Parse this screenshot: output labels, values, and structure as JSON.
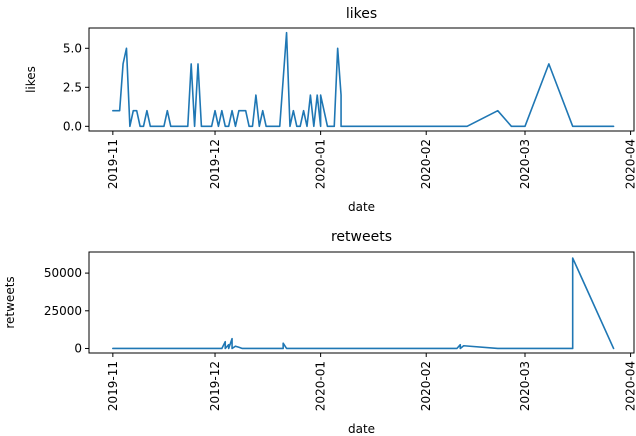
{
  "chart_data": [
    {
      "type": "line",
      "title": "likes",
      "xlabel": "date",
      "ylabel": "likes",
      "x_range": [
        "2019-10-25",
        "2020-04-02"
      ],
      "ylim": [
        -0.3,
        6.3
      ],
      "y_ticks": [
        0,
        2.5,
        5
      ],
      "y_tick_labels": [
        "0.0",
        "2.5",
        "5.0"
      ],
      "x_ticks": [
        "2019-11-01",
        "2019-12-01",
        "2020-01-01",
        "2020-02-01",
        "2020-03-01",
        "2020-04-01"
      ],
      "x_tick_labels": [
        "2019-11",
        "2019-12",
        "2020-01",
        "2020-02",
        "2020-03",
        "2020-04"
      ],
      "grid": false,
      "series": [
        {
          "color": "#1f77b4",
          "points": [
            [
              "2019-11-01",
              1
            ],
            [
              "2019-11-03",
              1
            ],
            [
              "2019-11-04",
              4
            ],
            [
              "2019-11-05",
              5
            ],
            [
              "2019-11-06",
              0
            ],
            [
              "2019-11-07",
              1
            ],
            [
              "2019-11-08",
              1
            ],
            [
              "2019-11-09",
              0
            ],
            [
              "2019-11-10",
              0
            ],
            [
              "2019-11-11",
              1
            ],
            [
              "2019-11-12",
              0
            ],
            [
              "2019-11-16",
              0
            ],
            [
              "2019-11-17",
              1
            ],
            [
              "2019-11-18",
              0
            ],
            [
              "2019-11-23",
              0
            ],
            [
              "2019-11-24",
              4
            ],
            [
              "2019-11-25",
              0
            ],
            [
              "2019-11-26",
              4
            ],
            [
              "2019-11-27",
              0
            ],
            [
              "2019-11-30",
              0
            ],
            [
              "2019-12-01",
              1
            ],
            [
              "2019-12-02",
              0
            ],
            [
              "2019-12-03",
              1
            ],
            [
              "2019-12-04",
              0
            ],
            [
              "2019-12-05",
              0
            ],
            [
              "2019-12-06",
              1
            ],
            [
              "2019-12-07",
              0
            ],
            [
              "2019-12-08",
              1
            ],
            [
              "2019-12-10",
              1
            ],
            [
              "2019-12-11",
              0
            ],
            [
              "2019-12-12",
              0
            ],
            [
              "2019-12-13",
              2
            ],
            [
              "2019-12-14",
              0
            ],
            [
              "2019-12-15",
              1
            ],
            [
              "2019-12-16",
              0
            ],
            [
              "2019-12-20",
              0
            ],
            [
              "2019-12-21",
              3
            ],
            [
              "2019-12-22",
              6
            ],
            [
              "2019-12-23",
              0
            ],
            [
              "2019-12-24",
              1
            ],
            [
              "2019-12-25",
              0
            ],
            [
              "2019-12-26",
              0
            ],
            [
              "2019-12-27",
              1
            ],
            [
              "2019-12-28",
              0
            ],
            [
              "2019-12-29",
              2
            ],
            [
              "2019-12-30",
              0
            ],
            [
              "2019-12-31",
              2
            ],
            [
              "2020-01-01",
              0
            ],
            [
              "2020-01-01",
              2
            ],
            [
              "2020-01-02",
              1
            ],
            [
              "2020-01-03",
              0
            ],
            [
              "2020-01-05",
              0
            ],
            [
              "2020-01-06",
              5
            ],
            [
              "2020-01-07",
              2
            ],
            [
              "2020-01-07",
              0
            ],
            [
              "2020-02-13",
              0
            ],
            [
              "2020-02-22",
              1
            ],
            [
              "2020-02-26",
              0
            ],
            [
              "2020-03-01",
              0
            ],
            [
              "2020-03-08",
              4
            ],
            [
              "2020-03-15",
              0
            ],
            [
              "2020-03-27",
              0
            ]
          ]
        }
      ]
    },
    {
      "type": "line",
      "title": "retweets",
      "xlabel": "date",
      "ylabel": "retweets",
      "x_range": [
        "2019-10-25",
        "2020-04-02"
      ],
      "ylim": [
        -3000,
        64000
      ],
      "y_ticks": [
        0,
        25000,
        50000
      ],
      "y_tick_labels": [
        "0",
        "25000",
        "50000"
      ],
      "x_ticks": [
        "2019-11-01",
        "2019-12-01",
        "2020-01-01",
        "2020-02-01",
        "2020-03-01",
        "2020-04-01"
      ],
      "x_tick_labels": [
        "2019-11",
        "2019-12",
        "2020-01",
        "2020-02",
        "2020-03",
        "2020-04"
      ],
      "grid": false,
      "series": [
        {
          "color": "#1f77b4",
          "points": [
            [
              "2019-11-01",
              0
            ],
            [
              "2019-12-03",
              0
            ],
            [
              "2019-12-04",
              4500
            ],
            [
              "2019-12-04",
              0
            ],
            [
              "2019-12-05",
              2500
            ],
            [
              "2019-12-05",
              0
            ],
            [
              "2019-12-06",
              6500
            ],
            [
              "2019-12-06",
              0
            ],
            [
              "2019-12-07",
              1500
            ],
            [
              "2019-12-08",
              800
            ],
            [
              "2019-12-09",
              0
            ],
            [
              "2019-12-21",
              0
            ],
            [
              "2019-12-21",
              3500
            ],
            [
              "2019-12-22",
              0
            ],
            [
              "2020-02-10",
              0
            ],
            [
              "2020-02-11",
              2500
            ],
            [
              "2020-02-11",
              0
            ],
            [
              "2020-02-12",
              1800
            ],
            [
              "2020-02-22",
              0
            ],
            [
              "2020-03-15",
              0
            ],
            [
              "2020-03-15",
              60000
            ],
            [
              "2020-03-18",
              45000
            ],
            [
              "2020-03-27",
              0
            ]
          ]
        }
      ]
    }
  ]
}
